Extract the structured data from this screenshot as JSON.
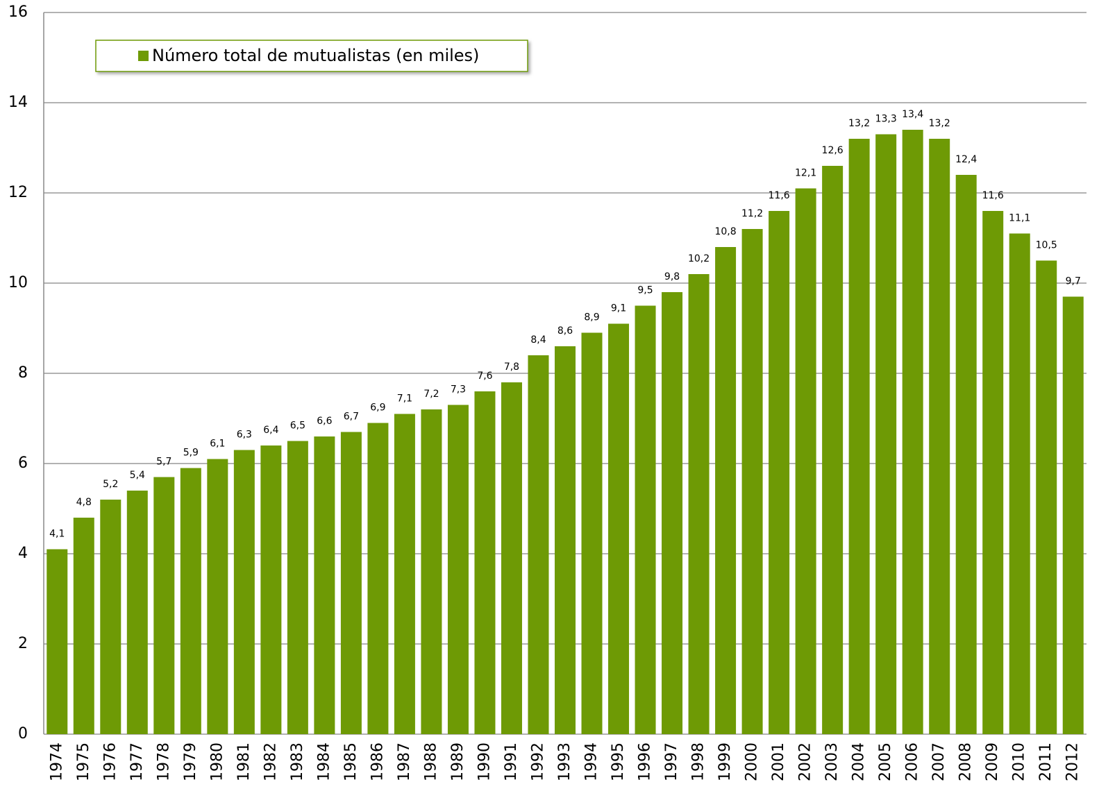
{
  "chart_data": {
    "type": "bar",
    "categories": [
      "1974",
      "1975",
      "1976",
      "1977",
      "1978",
      "1979",
      "1980",
      "1981",
      "1982",
      "1983",
      "1984",
      "1985",
      "1986",
      "1987",
      "1988",
      "1989",
      "1990",
      "1991",
      "1992",
      "1993",
      "1994",
      "1995",
      "1996",
      "1997",
      "1998",
      "1999",
      "2000",
      "2001",
      "2002",
      "2003",
      "2004",
      "2005",
      "2006",
      "2007",
      "2008",
      "2009",
      "2010",
      "2011",
      "2012"
    ],
    "series": [
      {
        "name": "Número total de mutualistas (en miles)",
        "color": "#6e9a05",
        "values": [
          4.1,
          4.8,
          5.2,
          5.4,
          5.7,
          5.9,
          6.1,
          6.3,
          6.4,
          6.5,
          6.6,
          6.7,
          6.9,
          7.1,
          7.2,
          7.3,
          7.6,
          7.8,
          8.4,
          8.6,
          8.9,
          9.1,
          9.5,
          9.8,
          10.2,
          10.8,
          11.2,
          11.6,
          12.1,
          12.6,
          13.2,
          13.3,
          13.4,
          13.2,
          12.4,
          11.6,
          11.1,
          10.5,
          9.7
        ],
        "value_labels": [
          "4,1",
          "4,8",
          "5,2",
          "5,4",
          "5,7",
          "5,9",
          "6,1",
          "6,3",
          "6,4",
          "6,5",
          "6,6",
          "6,7",
          "6,9",
          "7,1",
          "7,2",
          "7,3",
          "7,6",
          "7,8",
          "8,4",
          "8,6",
          "8,9",
          "9,1",
          "9,5",
          "9,8",
          "10,2",
          "10,8",
          "11,2",
          "11,6",
          "12,1",
          "12,6",
          "13,2",
          "13,3",
          "13,4",
          "13,2",
          "12,4",
          "11,6",
          "11,1",
          "10,5",
          "9,7"
        ]
      }
    ],
    "ylim": [
      0,
      16
    ],
    "yticks": [
      0,
      2,
      4,
      6,
      8,
      10,
      12,
      14,
      16
    ],
    "grid": true,
    "legend": "top-left"
  }
}
